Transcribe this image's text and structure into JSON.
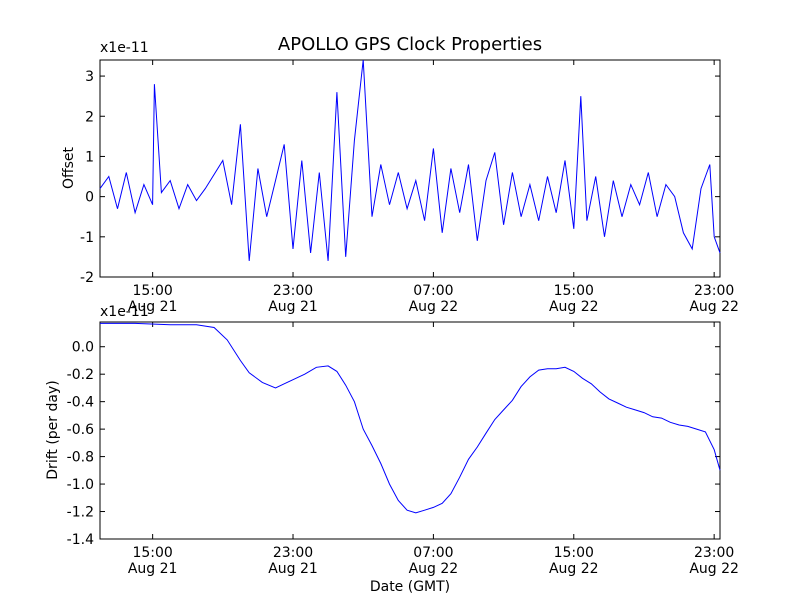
{
  "title": "APOLLO GPS Clock Properties",
  "chart_data": [
    {
      "type": "line",
      "ylabel": "Offset",
      "scale_label": "x1e-11",
      "ylim": [
        -2,
        3.4
      ],
      "yticks": [
        -2,
        -1,
        0,
        1,
        2,
        3
      ],
      "ytick_labels": [
        "-2",
        "-1",
        "0",
        "1",
        "2",
        "3"
      ],
      "xticks": [
        {
          "line1": "15:00",
          "line2": "Aug 21"
        },
        {
          "line1": "23:00",
          "line2": "Aug 21"
        },
        {
          "line1": "07:00",
          "line2": "Aug 22"
        },
        {
          "line1": "15:00",
          "line2": "Aug 22"
        },
        {
          "line1": "23:00",
          "line2": "Aug 22"
        }
      ],
      "xlim": [
        "2008-08-21 12:00",
        "2008-08-22 23:20"
      ],
      "color": "#0000ff",
      "points": [
        [
          "2008-08-21 12:00",
          0.2
        ],
        [
          "2008-08-21 12:30",
          0.5
        ],
        [
          "2008-08-21 13:00",
          -0.3
        ],
        [
          "2008-08-21 13:30",
          0.6
        ],
        [
          "2008-08-21 14:00",
          -0.4
        ],
        [
          "2008-08-21 14:30",
          0.3
        ],
        [
          "2008-08-21 15:00",
          -0.2
        ],
        [
          "2008-08-21 15:06",
          2.8
        ],
        [
          "2008-08-21 15:30",
          0.1
        ],
        [
          "2008-08-21 16:00",
          0.4
        ],
        [
          "2008-08-21 16:30",
          -0.3
        ],
        [
          "2008-08-21 17:00",
          0.3
        ],
        [
          "2008-08-21 17:30",
          -0.1
        ],
        [
          "2008-08-21 18:00",
          0.2
        ],
        [
          "2008-08-21 19:00",
          0.9
        ],
        [
          "2008-08-21 19:30",
          -0.2
        ],
        [
          "2008-08-21 20:00",
          1.8
        ],
        [
          "2008-08-21 20:30",
          -1.6
        ],
        [
          "2008-08-21 21:00",
          0.7
        ],
        [
          "2008-08-21 21:30",
          -0.5
        ],
        [
          "2008-08-21 22:00",
          0.4
        ],
        [
          "2008-08-21 22:30",
          1.3
        ],
        [
          "2008-08-21 23:00",
          -1.3
        ],
        [
          "2008-08-21 23:30",
          0.9
        ],
        [
          "2008-08-22 00:00",
          -1.4
        ],
        [
          "2008-08-22 00:30",
          0.6
        ],
        [
          "2008-08-22 01:00",
          -1.6
        ],
        [
          "2008-08-22 01:30",
          2.6
        ],
        [
          "2008-08-22 02:00",
          -1.5
        ],
        [
          "2008-08-22 02:30",
          1.4
        ],
        [
          "2008-08-22 03:00",
          3.4
        ],
        [
          "2008-08-22 03:30",
          -0.5
        ],
        [
          "2008-08-22 04:00",
          0.8
        ],
        [
          "2008-08-22 04:30",
          -0.2
        ],
        [
          "2008-08-22 05:00",
          0.6
        ],
        [
          "2008-08-22 05:30",
          -0.3
        ],
        [
          "2008-08-22 06:00",
          0.4
        ],
        [
          "2008-08-22 06:30",
          -0.6
        ],
        [
          "2008-08-22 07:00",
          1.2
        ],
        [
          "2008-08-22 07:30",
          -0.9
        ],
        [
          "2008-08-22 08:00",
          0.7
        ],
        [
          "2008-08-22 08:30",
          -0.4
        ],
        [
          "2008-08-22 09:00",
          0.8
        ],
        [
          "2008-08-22 09:30",
          -1.1
        ],
        [
          "2008-08-22 10:00",
          0.4
        ],
        [
          "2008-08-22 10:30",
          1.1
        ],
        [
          "2008-08-22 11:00",
          -0.7
        ],
        [
          "2008-08-22 11:30",
          0.6
        ],
        [
          "2008-08-22 12:00",
          -0.5
        ],
        [
          "2008-08-22 12:30",
          0.3
        ],
        [
          "2008-08-22 13:00",
          -0.6
        ],
        [
          "2008-08-22 13:30",
          0.5
        ],
        [
          "2008-08-22 14:00",
          -0.4
        ],
        [
          "2008-08-22 14:30",
          0.9
        ],
        [
          "2008-08-22 15:00",
          -0.8
        ],
        [
          "2008-08-22 15:24",
          2.5
        ],
        [
          "2008-08-22 15:45",
          -0.6
        ],
        [
          "2008-08-22 16:15",
          0.5
        ],
        [
          "2008-08-22 16:45",
          -1.0
        ],
        [
          "2008-08-22 17:15",
          0.4
        ],
        [
          "2008-08-22 17:45",
          -0.5
        ],
        [
          "2008-08-22 18:15",
          0.3
        ],
        [
          "2008-08-22 18:45",
          -0.2
        ],
        [
          "2008-08-22 19:15",
          0.6
        ],
        [
          "2008-08-22 19:45",
          -0.5
        ],
        [
          "2008-08-22 20:15",
          0.3
        ],
        [
          "2008-08-22 20:45",
          0.0
        ],
        [
          "2008-08-22 21:15",
          -0.9
        ],
        [
          "2008-08-22 21:45",
          -1.3
        ],
        [
          "2008-08-22 22:15",
          0.2
        ],
        [
          "2008-08-22 22:45",
          0.8
        ],
        [
          "2008-08-22 23:00",
          -1.0
        ],
        [
          "2008-08-22 23:20",
          -1.4
        ]
      ]
    },
    {
      "type": "line",
      "ylabel": "Drift (per day)",
      "xlabel": "Date (GMT)",
      "scale_label": "x1e-11",
      "ylim": [
        -1.4,
        0.18
      ],
      "yticks": [
        -1.4,
        -1.2,
        -1.0,
        -0.8,
        -0.6,
        -0.4,
        -0.2,
        0.0
      ],
      "ytick_labels": [
        "-1.4",
        "-1.2",
        "-1.0",
        "-0.8",
        "-0.6",
        "-0.4",
        "-0.2",
        "0.0"
      ],
      "xticks": [
        {
          "line1": "15:00",
          "line2": "Aug 21"
        },
        {
          "line1": "23:00",
          "line2": "Aug 21"
        },
        {
          "line1": "07:00",
          "line2": "Aug 22"
        },
        {
          "line1": "15:00",
          "line2": "Aug 22"
        },
        {
          "line1": "23:00",
          "line2": "Aug 22"
        }
      ],
      "xlim": [
        "2008-08-21 12:00",
        "2008-08-22 23:20"
      ],
      "color": "#0000ff",
      "points": [
        [
          "2008-08-21 12:00",
          0.17
        ],
        [
          "2008-08-21 14:00",
          0.17
        ],
        [
          "2008-08-21 16:00",
          0.16
        ],
        [
          "2008-08-21 17:30",
          0.16
        ],
        [
          "2008-08-21 18:30",
          0.14
        ],
        [
          "2008-08-21 19:15",
          0.05
        ],
        [
          "2008-08-21 20:00",
          -0.1
        ],
        [
          "2008-08-21 20:30",
          -0.19
        ],
        [
          "2008-08-21 21:15",
          -0.26
        ],
        [
          "2008-08-21 22:00",
          -0.3
        ],
        [
          "2008-08-21 22:30",
          -0.27
        ],
        [
          "2008-08-21 23:00",
          -0.24
        ],
        [
          "2008-08-21 23:40",
          -0.2
        ],
        [
          "2008-08-22 00:20",
          -0.15
        ],
        [
          "2008-08-22 01:00",
          -0.14
        ],
        [
          "2008-08-22 01:30",
          -0.18
        ],
        [
          "2008-08-22 02:00",
          -0.28
        ],
        [
          "2008-08-22 02:30",
          -0.4
        ],
        [
          "2008-08-22 03:00",
          -0.6
        ],
        [
          "2008-08-22 03:30",
          -0.72
        ],
        [
          "2008-08-22 04:00",
          -0.85
        ],
        [
          "2008-08-22 04:30",
          -1.0
        ],
        [
          "2008-08-22 05:00",
          -1.12
        ],
        [
          "2008-08-22 05:30",
          -1.19
        ],
        [
          "2008-08-22 06:00",
          -1.21
        ],
        [
          "2008-08-22 06:30",
          -1.19
        ],
        [
          "2008-08-22 07:00",
          -1.17
        ],
        [
          "2008-08-22 07:30",
          -1.14
        ],
        [
          "2008-08-22 08:00",
          -1.07
        ],
        [
          "2008-08-22 08:30",
          -0.95
        ],
        [
          "2008-08-22 09:00",
          -0.82
        ],
        [
          "2008-08-22 09:30",
          -0.73
        ],
        [
          "2008-08-22 10:00",
          -0.63
        ],
        [
          "2008-08-22 10:30",
          -0.53
        ],
        [
          "2008-08-22 11:00",
          -0.46
        ],
        [
          "2008-08-22 11:30",
          -0.39
        ],
        [
          "2008-08-22 12:00",
          -0.29
        ],
        [
          "2008-08-22 12:30",
          -0.22
        ],
        [
          "2008-08-22 13:00",
          -0.17
        ],
        [
          "2008-08-22 13:30",
          -0.16
        ],
        [
          "2008-08-22 14:00",
          -0.16
        ],
        [
          "2008-08-22 14:30",
          -0.15
        ],
        [
          "2008-08-22 15:00",
          -0.18
        ],
        [
          "2008-08-22 15:30",
          -0.23
        ],
        [
          "2008-08-22 16:00",
          -0.27
        ],
        [
          "2008-08-22 16:30",
          -0.33
        ],
        [
          "2008-08-22 17:00",
          -0.38
        ],
        [
          "2008-08-22 17:30",
          -0.41
        ],
        [
          "2008-08-22 18:00",
          -0.44
        ],
        [
          "2008-08-22 18:30",
          -0.46
        ],
        [
          "2008-08-22 19:00",
          -0.48
        ],
        [
          "2008-08-22 19:30",
          -0.51
        ],
        [
          "2008-08-22 20:00",
          -0.52
        ],
        [
          "2008-08-22 20:30",
          -0.55
        ],
        [
          "2008-08-22 21:00",
          -0.57
        ],
        [
          "2008-08-22 21:30",
          -0.58
        ],
        [
          "2008-08-22 22:00",
          -0.6
        ],
        [
          "2008-08-22 22:30",
          -0.62
        ],
        [
          "2008-08-22 23:00",
          -0.75
        ],
        [
          "2008-08-22 23:20",
          -0.9
        ]
      ]
    }
  ]
}
